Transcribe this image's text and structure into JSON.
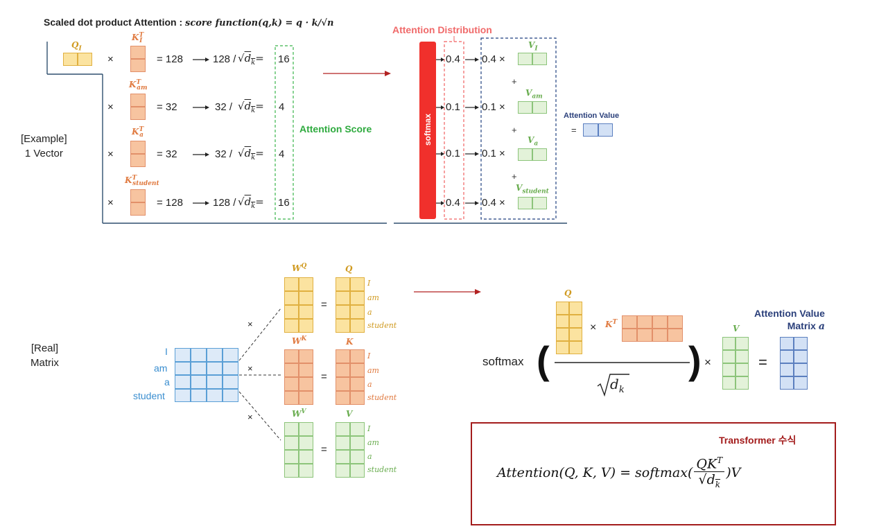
{
  "top": {
    "title_prefix": "Scaled dot product Attention : ",
    "title_formula": "score function(q,k) = q · k/√n",
    "example_label_1": "[Example]",
    "example_label_2": "1 Vector",
    "query_label": "Q_I",
    "rows": [
      {
        "key": "K_I^T",
        "score": "= 128",
        "scaled": "128 /",
        "result": "16",
        "prob_in": "0.4",
        "prob_out": "0.4 ×",
        "value": "V_I"
      },
      {
        "key": "K_am^T",
        "score": "= 32",
        "scaled": "32 /",
        "result": "4",
        "prob_in": "0.1",
        "prob_out": "0.1 ×",
        "value": "V_am"
      },
      {
        "key": "K_a^T",
        "score": "= 32",
        "scaled": "32 /",
        "result": "4",
        "prob_in": "0.1",
        "prob_out": "0.1 ×",
        "value": "V_a"
      },
      {
        "key": "K_student^T",
        "score": "= 128",
        "scaled": "128 /",
        "result": "16",
        "prob_in": "0.4",
        "prob_out": "0.4 ×",
        "value": "V_student"
      }
    ],
    "times": "×",
    "sqrt_dk": "√d_k",
    "eq": "=",
    "plus": "+",
    "attention_score_label": "Attention Score",
    "attention_distribution_label": "Attention Distribution",
    "softmax_label": "softmax",
    "attention_value_label": "Attention Value",
    "attention_value_eq": "="
  },
  "bottom": {
    "real_label_1": "[Real]",
    "real_label_2": "Matrix",
    "input_words": [
      "I",
      "am",
      "a",
      "student"
    ],
    "weights": [
      {
        "w": "W^Q",
        "out": "Q",
        "words": [
          "I",
          "am",
          "a",
          "student"
        ]
      },
      {
        "w": "W^K",
        "out": "K",
        "words": [
          "I",
          "am",
          "a",
          "student"
        ]
      },
      {
        "w": "W^V",
        "out": "V",
        "words": [
          "I",
          "am",
          "a",
          "student"
        ]
      }
    ],
    "times": "×",
    "eq": "=",
    "softmax_text": "softmax",
    "q_label": "Q",
    "kt_label": "K^T",
    "v_label": "V",
    "dk_label": "d_k",
    "result_label_1": "Attention Value",
    "result_label_2": "Matrix a",
    "transformer_title": "Transformer 수식",
    "transformer_formula": "Attention(Q,K,V) = softmax(QK^T / √d_k)V"
  },
  "colors": {
    "yellow": "#fbe3a0",
    "orange": "#f7c4a0",
    "green": "#e3f2d9",
    "blue": "#d3e1f5",
    "softmax_red": "#f0302c",
    "arrow_red": "#b22222",
    "box_border": "#a31c1c"
  }
}
